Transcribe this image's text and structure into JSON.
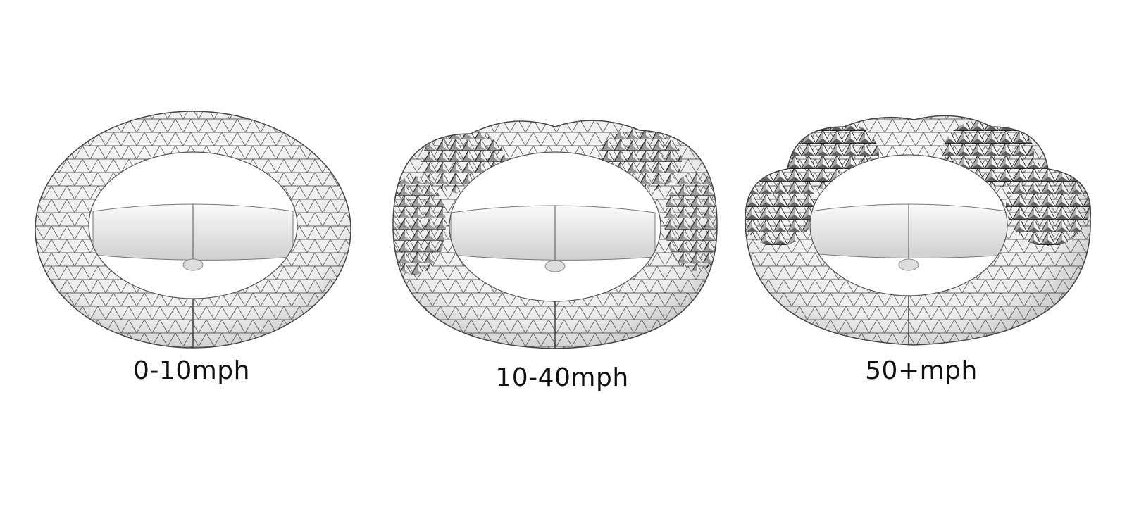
{
  "colors": {
    "background": "#ffffff",
    "mesh_line": "#2a2a2a",
    "surface_light": "#f4f4f4",
    "surface_shadow": "#bdbdbd",
    "hub": "#e2e2e2",
    "label": "#111111"
  },
  "panels": [
    {
      "label": "0-10mph",
      "deformation": "none"
    },
    {
      "label": "10-40mph",
      "deformation": "moderate"
    },
    {
      "label": "50+mph",
      "deformation": "strong"
    }
  ]
}
